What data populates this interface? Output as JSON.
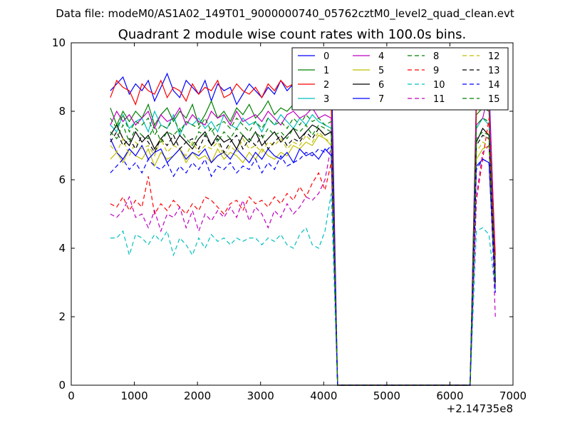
{
  "suptitle": "Data file: modeM0/AS1A02_149T01_9000000740_05762cztM0_level2_quad_clean.evt",
  "chart_data": {
    "type": "line",
    "title": "Quadrant 2 module wise count rates with 100.0s bins.",
    "xlabel": "",
    "ylabel": "",
    "x_offset_label": "+2.14735e8",
    "xlim": [
      0,
      7000
    ],
    "ylim": [
      0,
      10
    ],
    "xticks": [
      "0",
      "1000",
      "2000",
      "3000",
      "4000",
      "5000",
      "6000",
      "7000"
    ],
    "yticks": [
      "0",
      "2",
      "4",
      "6",
      "8",
      "10"
    ],
    "grid": false,
    "legend_position": "top-right",
    "x": [
      620,
      720,
      820,
      920,
      1020,
      1120,
      1220,
      1320,
      1420,
      1520,
      1620,
      1720,
      1820,
      1920,
      2020,
      2120,
      2220,
      2320,
      2420,
      2520,
      2620,
      2720,
      2820,
      2920,
      3020,
      3120,
      3220,
      3320,
      3420,
      3520,
      3620,
      3720,
      3820,
      3920,
      4020,
      4120,
      4220,
      4320,
      4420,
      4520,
      4620,
      4720,
      4820,
      4920,
      5020,
      5120,
      5220,
      5320,
      5420,
      5520,
      5620,
      5720,
      5820,
      5920,
      6020,
      6120,
      6220,
      6320,
      6420,
      6520,
      6620,
      6720
    ],
    "series": [
      {
        "name": "0",
        "color": "#0000ff",
        "dash": "solid",
        "values": [
          8.6,
          8.8,
          9.0,
          8.5,
          8.8,
          8.6,
          8.9,
          8.3,
          8.7,
          9.1,
          8.6,
          8.4,
          8.9,
          8.7,
          8.5,
          8.9,
          8.3,
          8.8,
          8.6,
          8.7,
          8.2,
          8.5,
          8.8,
          8.6,
          8.4,
          8.7,
          8.5,
          8.9,
          8.6,
          8.8,
          8.5,
          8.7,
          8.9,
          9.2,
          8.8,
          9.6,
          0,
          0,
          0,
          0,
          0,
          0,
          0,
          0,
          0,
          0,
          0,
          0,
          0,
          0,
          0,
          0,
          0,
          0,
          0,
          0,
          0,
          0,
          8.5,
          8.7,
          8.8,
          3.5
        ]
      },
      {
        "name": "1",
        "color": "#008000",
        "dash": "solid",
        "values": [
          8.1,
          7.6,
          8.0,
          7.7,
          8.0,
          7.8,
          8.2,
          7.6,
          7.9,
          8.1,
          7.7,
          8.0,
          7.8,
          8.2,
          7.6,
          7.9,
          8.3,
          7.8,
          8.0,
          7.7,
          8.1,
          7.9,
          8.2,
          7.8,
          8.0,
          8.3,
          7.9,
          8.1,
          8.0,
          8.2,
          8.3,
          8.6,
          8.2,
          8.5,
          8.4,
          8.2,
          0,
          0,
          0,
          0,
          0,
          0,
          0,
          0,
          0,
          0,
          0,
          0,
          0,
          0,
          0,
          0,
          0,
          0,
          0,
          0,
          0,
          0,
          7.9,
          8.1,
          8.0,
          3.2
        ]
      },
      {
        "name": "2",
        "color": "#ff0000",
        "dash": "solid",
        "values": [
          8.4,
          8.9,
          8.7,
          8.6,
          8.2,
          8.8,
          8.6,
          8.5,
          8.9,
          8.4,
          8.7,
          8.6,
          8.3,
          8.8,
          8.5,
          8.7,
          8.6,
          8.9,
          8.4,
          8.5,
          8.8,
          8.6,
          8.5,
          8.7,
          8.4,
          8.8,
          8.6,
          8.9,
          8.7,
          8.8,
          8.6,
          8.9,
          8.5,
          8.7,
          8.6,
          8.4,
          0,
          0,
          0,
          0,
          0,
          0,
          0,
          0,
          0,
          0,
          0,
          0,
          0,
          0,
          0,
          0,
          0,
          0,
          0,
          0,
          0,
          0,
          8.2,
          8.6,
          8.4,
          3.8
        ]
      },
      {
        "name": "3",
        "color": "#00bfbf",
        "dash": "solid",
        "values": [
          7.6,
          7.4,
          7.9,
          7.5,
          7.7,
          7.8,
          7.4,
          8.0,
          7.6,
          7.5,
          7.9,
          7.3,
          7.7,
          7.6,
          7.8,
          7.5,
          7.7,
          7.4,
          7.9,
          7.6,
          7.5,
          7.8,
          7.6,
          7.7,
          7.4,
          7.8,
          7.6,
          7.9,
          7.7,
          7.5,
          7.8,
          7.6,
          7.9,
          7.7,
          7.6,
          7.5,
          0,
          0,
          0,
          0,
          0,
          0,
          0,
          0,
          0,
          0,
          0,
          0,
          0,
          0,
          0,
          0,
          0,
          0,
          0,
          0,
          0,
          0,
          7.5,
          7.8,
          7.6,
          3.0
        ]
      },
      {
        "name": "4",
        "color": "#bf00bf",
        "dash": "solid",
        "values": [
          7.6,
          8.0,
          7.7,
          7.9,
          7.6,
          7.8,
          8.0,
          7.5,
          7.9,
          7.7,
          7.8,
          8.1,
          7.6,
          7.9,
          7.7,
          7.6,
          8.0,
          7.8,
          7.9,
          7.6,
          8.0,
          7.7,
          7.8,
          7.9,
          7.7,
          8.0,
          7.8,
          7.6,
          7.9,
          8.0,
          7.8,
          7.9,
          8.1,
          7.8,
          7.9,
          7.8,
          0,
          0,
          0,
          0,
          0,
          0,
          0,
          0,
          0,
          0,
          0,
          0,
          0,
          0,
          0,
          0,
          0,
          0,
          0,
          0,
          0,
          0,
          7.6,
          7.8,
          8.6,
          3.4
        ]
      },
      {
        "name": "5",
        "color": "#bfbf00",
        "dash": "solid",
        "values": [
          6.6,
          6.8,
          6.5,
          6.9,
          6.7,
          6.6,
          6.9,
          6.4,
          6.8,
          6.6,
          6.7,
          6.9,
          6.5,
          6.8,
          6.6,
          6.7,
          6.5,
          6.9,
          6.6,
          6.8,
          6.7,
          6.5,
          6.8,
          6.6,
          6.9,
          6.7,
          6.6,
          6.8,
          6.7,
          7.0,
          6.9,
          7.1,
          7.0,
          7.3,
          7.2,
          7.0,
          0,
          0,
          0,
          0,
          0,
          0,
          0,
          0,
          0,
          0,
          0,
          0,
          0,
          0,
          0,
          0,
          0,
          0,
          0,
          0,
          0,
          0,
          6.6,
          6.9,
          7.0,
          2.9
        ]
      },
      {
        "name": "6",
        "color": "#000000",
        "dash": "solid",
        "values": [
          7.3,
          7.6,
          7.2,
          7.0,
          7.4,
          7.1,
          7.3,
          6.9,
          7.2,
          7.4,
          7.0,
          7.3,
          7.1,
          6.9,
          7.2,
          7.4,
          7.0,
          7.3,
          7.1,
          7.2,
          6.9,
          7.3,
          7.1,
          7.4,
          7.0,
          7.2,
          7.4,
          7.1,
          7.3,
          7.5,
          7.2,
          7.4,
          7.6,
          7.5,
          7.3,
          7.4,
          0,
          0,
          0,
          0,
          0,
          0,
          0,
          0,
          0,
          0,
          0,
          0,
          0,
          0,
          0,
          0,
          0,
          0,
          0,
          0,
          0,
          0,
          7.1,
          7.5,
          7.3,
          3.1
        ]
      },
      {
        "name": "7",
        "color": "#0000ff",
        "dash": "solid",
        "values": [
          7.2,
          6.8,
          6.6,
          6.9,
          6.7,
          7.0,
          6.6,
          6.8,
          6.9,
          6.5,
          6.7,
          6.9,
          6.6,
          6.8,
          6.7,
          6.9,
          6.5,
          6.7,
          6.8,
          6.6,
          6.9,
          6.7,
          6.5,
          6.8,
          6.6,
          6.9,
          6.7,
          6.6,
          6.8,
          6.5,
          6.9,
          6.7,
          6.8,
          6.6,
          6.9,
          6.7,
          0,
          0,
          0,
          0,
          0,
          0,
          0,
          0,
          0,
          0,
          0,
          0,
          0,
          0,
          0,
          0,
          0,
          0,
          0,
          0,
          0,
          0,
          6.4,
          6.6,
          6.5,
          2.8
        ]
      },
      {
        "name": "8",
        "color": "#008000",
        "dash": "dashed",
        "values": [
          7.8,
          7.5,
          7.9,
          7.4,
          7.7,
          7.6,
          7.8,
          7.3,
          7.6,
          7.5,
          7.8,
          7.4,
          7.7,
          7.6,
          7.5,
          7.8,
          7.4,
          7.6,
          7.7,
          7.5,
          7.8,
          7.6,
          7.4,
          7.7,
          7.5,
          7.8,
          7.6,
          7.7,
          7.5,
          7.8,
          7.6,
          7.9,
          7.7,
          7.8,
          7.6,
          7.7,
          0,
          0,
          0,
          0,
          0,
          0,
          0,
          0,
          0,
          0,
          0,
          0,
          0,
          0,
          0,
          0,
          0,
          0,
          0,
          0,
          0,
          0,
          7.6,
          7.8,
          7.7,
          3.0
        ]
      },
      {
        "name": "9",
        "color": "#ff0000",
        "dash": "dashed",
        "values": [
          5.3,
          5.2,
          5.5,
          5.1,
          5.4,
          5.2,
          6.1,
          5.0,
          5.3,
          5.1,
          5.4,
          5.2,
          5.0,
          5.3,
          5.1,
          5.5,
          5.4,
          5.2,
          5.0,
          5.3,
          5.4,
          5.1,
          5.5,
          5.3,
          5.4,
          5.2,
          5.5,
          5.3,
          5.6,
          5.4,
          5.8,
          5.5,
          5.9,
          6.2,
          5.7,
          6.5,
          0,
          0,
          0,
          0,
          0,
          0,
          0,
          0,
          0,
          0,
          0,
          0,
          0,
          0,
          0,
          0,
          0,
          0,
          0,
          0,
          0,
          0,
          5.4,
          6.6,
          7.8,
          3.3
        ]
      },
      {
        "name": "10",
        "color": "#00bfbf",
        "dash": "dashed",
        "values": [
          4.3,
          4.3,
          4.5,
          3.8,
          4.4,
          4.3,
          4.1,
          4.4,
          4.2,
          4.5,
          3.8,
          4.3,
          4.1,
          3.8,
          4.3,
          4.0,
          4.4,
          4.2,
          4.3,
          4.1,
          4.3,
          4.2,
          4.3,
          4.3,
          4.1,
          4.3,
          4.2,
          4.4,
          4.1,
          4.0,
          4.4,
          4.6,
          4.1,
          4.0,
          4.5,
          5.6,
          0,
          0,
          0,
          0,
          0,
          0,
          0,
          0,
          0,
          0,
          0,
          0,
          0,
          0,
          0,
          0,
          0,
          0,
          0,
          0,
          0,
          0,
          4.5,
          4.6,
          4.4,
          2.7
        ]
      },
      {
        "name": "11",
        "color": "#bf00bf",
        "dash": "dashed",
        "values": [
          5.0,
          4.9,
          5.1,
          5.5,
          4.9,
          5.0,
          4.6,
          5.1,
          4.5,
          5.0,
          4.9,
          5.2,
          4.6,
          5.1,
          4.5,
          5.0,
          4.8,
          5.1,
          4.9,
          5.2,
          4.9,
          5.4,
          4.8,
          5.2,
          5.0,
          4.6,
          5.1,
          4.9,
          5.3,
          5.0,
          5.2,
          5.5,
          5.4,
          5.6,
          6.0,
          7.0,
          0,
          0,
          0,
          0,
          0,
          0,
          0,
          0,
          0,
          0,
          0,
          0,
          0,
          0,
          0,
          0,
          0,
          0,
          0,
          0,
          0,
          0,
          5.5,
          6.8,
          7.0,
          2.0
        ]
      },
      {
        "name": "12",
        "color": "#bfbf00",
        "dash": "dashed",
        "values": [
          7.0,
          6.8,
          7.2,
          6.7,
          7.1,
          6.9,
          7.0,
          6.7,
          7.2,
          6.8,
          7.0,
          6.9,
          6.7,
          7.1,
          6.8,
          7.0,
          6.9,
          7.1,
          6.7,
          7.0,
          6.8,
          7.2,
          6.9,
          7.0,
          6.8,
          7.1,
          7.0,
          7.2,
          6.9,
          7.1,
          7.0,
          7.3,
          7.1,
          7.4,
          7.2,
          7.1,
          0,
          0,
          0,
          0,
          0,
          0,
          0,
          0,
          0,
          0,
          0,
          0,
          0,
          0,
          0,
          0,
          0,
          0,
          0,
          0,
          0,
          0,
          6.8,
          7.1,
          7.0,
          2.9
        ]
      },
      {
        "name": "13",
        "color": "#000000",
        "dash": "dashed",
        "values": [
          7.1,
          7.4,
          7.0,
          7.2,
          6.9,
          7.3,
          7.1,
          6.8,
          7.2,
          7.0,
          7.3,
          6.9,
          7.1,
          7.2,
          6.9,
          7.3,
          7.0,
          7.2,
          6.8,
          7.1,
          7.3,
          6.9,
          7.2,
          7.0,
          7.3,
          6.9,
          7.1,
          7.3,
          7.0,
          7.2,
          7.1,
          7.4,
          7.2,
          7.5,
          7.3,
          7.4,
          0,
          0,
          0,
          0,
          0,
          0,
          0,
          0,
          0,
          0,
          0,
          0,
          0,
          0,
          0,
          0,
          0,
          0,
          0,
          0,
          0,
          0,
          7.0,
          7.3,
          7.2,
          3.0
        ]
      },
      {
        "name": "14",
        "color": "#0000ff",
        "dash": "dashed",
        "values": [
          6.2,
          6.4,
          6.6,
          6.3,
          6.5,
          6.2,
          6.6,
          6.4,
          6.3,
          6.5,
          6.1,
          6.4,
          6.2,
          6.5,
          6.3,
          6.6,
          6.1,
          6.4,
          6.3,
          6.5,
          6.2,
          6.4,
          6.3,
          6.6,
          6.2,
          6.5,
          6.3,
          6.7,
          6.4,
          6.5,
          6.6,
          6.8,
          6.7,
          6.9,
          6.8,
          7.0,
          0,
          0,
          0,
          0,
          0,
          0,
          0,
          0,
          0,
          0,
          0,
          0,
          0,
          0,
          0,
          0,
          0,
          0,
          0,
          0,
          0,
          0,
          6.3,
          6.6,
          6.5,
          2.7
        ]
      },
      {
        "name": "15",
        "color": "#008000",
        "dash": "dashed",
        "values": [
          7.4,
          7.2,
          7.6,
          7.1,
          7.5,
          7.3,
          7.2,
          7.6,
          7.1,
          7.4,
          7.3,
          7.5,
          7.2,
          7.0,
          7.4,
          7.3,
          7.5,
          7.1,
          7.4,
          7.2,
          7.5,
          7.3,
          7.1,
          7.4,
          7.2,
          7.5,
          7.3,
          7.4,
          7.2,
          7.5,
          7.4,
          7.6,
          7.3,
          7.6,
          7.5,
          7.4,
          0,
          0,
          0,
          0,
          0,
          0,
          0,
          0,
          0,
          0,
          0,
          0,
          0,
          0,
          0,
          0,
          0,
          0,
          0,
          0,
          0,
          0,
          7.2,
          7.4,
          7.3,
          3.1
        ]
      }
    ]
  }
}
